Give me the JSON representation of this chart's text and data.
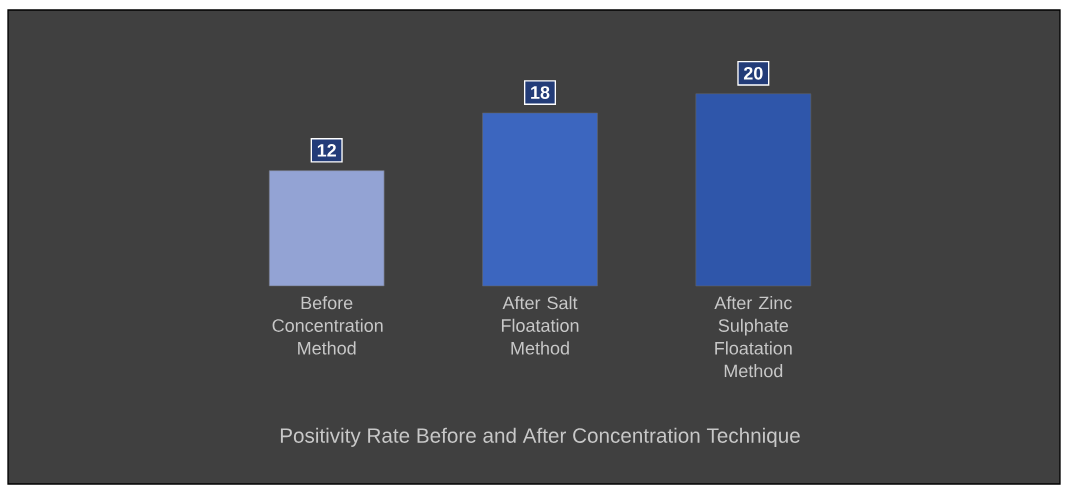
{
  "chart_data": {
    "type": "bar",
    "title": "Positivity Rate Before and After Concentration Technique",
    "categories": [
      "Before Concentration Method",
      "After Salt Floatation Method",
      "After Zinc Sulphate Floatation Method"
    ],
    "values": [
      12,
      18,
      20
    ],
    "colors": [
      "#93a3d4",
      "#3c66bf",
      "#2f56aa"
    ],
    "data_labels": true
  }
}
